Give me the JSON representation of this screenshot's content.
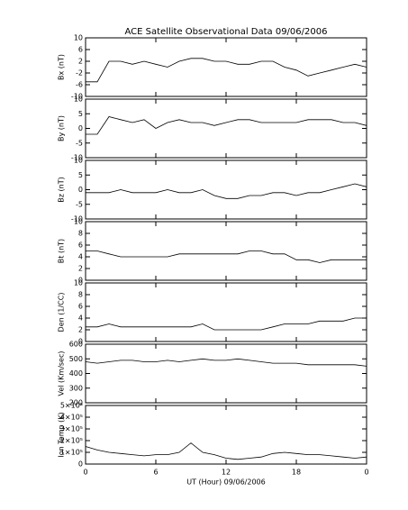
{
  "chart_data": [
    {
      "type": "line",
      "title": "ACE Satellite Observational Data   09/06/2006",
      "ylabel": "Bx (nT)",
      "ylim": [
        -10,
        10
      ],
      "yticks": [
        -10,
        -6,
        -2,
        2,
        6,
        10
      ],
      "color": "#000000",
      "x": [
        0,
        1,
        2,
        3,
        4,
        5,
        6,
        7,
        8,
        9,
        10,
        11,
        12,
        13,
        14,
        15,
        16,
        17,
        18,
        19,
        20,
        21,
        22,
        23,
        24
      ],
      "values": [
        -5,
        -5,
        2,
        2,
        1,
        2,
        1,
        0,
        2,
        3,
        3,
        2,
        2,
        1,
        1,
        2,
        2,
        0,
        -1,
        -3,
        -2,
        -1,
        0,
        1,
        0
      ]
    },
    {
      "type": "line",
      "ylabel": "By (nT)",
      "ylim": [
        -10,
        10
      ],
      "yticks": [
        -10,
        -5,
        0,
        5,
        10
      ],
      "color": "#000000",
      "x": [
        0,
        1,
        2,
        3,
        4,
        5,
        6,
        7,
        8,
        9,
        10,
        11,
        12,
        13,
        14,
        15,
        16,
        17,
        18,
        19,
        20,
        21,
        22,
        23,
        24
      ],
      "values": [
        -2,
        -2,
        4,
        3,
        2,
        3,
        0,
        2,
        3,
        2,
        2,
        1,
        2,
        3,
        3,
        2,
        2,
        2,
        2,
        3,
        3,
        3,
        2,
        2,
        1
      ]
    },
    {
      "type": "line",
      "ylabel": "Bz (nT)",
      "ylim": [
        -10,
        10
      ],
      "yticks": [
        -10,
        -5,
        0,
        5,
        10
      ],
      "color": "#000000",
      "x": [
        0,
        1,
        2,
        3,
        4,
        5,
        6,
        7,
        8,
        9,
        10,
        11,
        12,
        13,
        14,
        15,
        16,
        17,
        18,
        19,
        20,
        21,
        22,
        23,
        24
      ],
      "values": [
        -1,
        -1,
        -1,
        0,
        -1,
        -1,
        -1,
        0,
        -1,
        -1,
        0,
        -2,
        -3,
        -3,
        -2,
        -2,
        -1,
        -1,
        -2,
        -1,
        -1,
        0,
        1,
        2,
        1
      ]
    },
    {
      "type": "line",
      "ylabel": "Bt (nT)",
      "ylim": [
        0,
        10
      ],
      "yticks": [
        0,
        2,
        4,
        6,
        8,
        10
      ],
      "color": "#000000",
      "x": [
        0,
        1,
        2,
        3,
        4,
        5,
        6,
        7,
        8,
        9,
        10,
        11,
        12,
        13,
        14,
        15,
        16,
        17,
        18,
        19,
        20,
        21,
        22,
        23,
        24
      ],
      "values": [
        5,
        5,
        4.5,
        4,
        4,
        4,
        4,
        4,
        4.5,
        4.5,
        4.5,
        4.5,
        4.5,
        4.5,
        5,
        5,
        4.5,
        4.5,
        3.5,
        3.5,
        3,
        3.5,
        3.5,
        3.5,
        3.5
      ]
    },
    {
      "type": "line",
      "ylabel": "Den (1/CC)",
      "ylim": [
        0,
        10
      ],
      "yticks": [
        0,
        2,
        4,
        6,
        8,
        10
      ],
      "color": "#000000",
      "x": [
        0,
        1,
        2,
        3,
        4,
        5,
        6,
        7,
        8,
        9,
        10,
        11,
        12,
        13,
        14,
        15,
        16,
        17,
        18,
        19,
        20,
        21,
        22,
        23,
        24
      ],
      "values": [
        2.5,
        2.5,
        3,
        2.5,
        2.5,
        2.5,
        2.5,
        2.5,
        2.5,
        2.5,
        3,
        2,
        2,
        2,
        2,
        2,
        2.5,
        3,
        3,
        3,
        3.5,
        3.5,
        3.5,
        4,
        4
      ]
    },
    {
      "type": "line",
      "ylabel": "Vel (Km/sec)",
      "ylim": [
        200,
        600
      ],
      "yticks": [
        200,
        300,
        400,
        500,
        600
      ],
      "color": "#000000",
      "x": [
        0,
        1,
        2,
        3,
        4,
        5,
        6,
        7,
        8,
        9,
        10,
        11,
        12,
        13,
        14,
        15,
        16,
        17,
        18,
        19,
        20,
        21,
        22,
        23,
        24
      ],
      "values": [
        480,
        470,
        480,
        490,
        490,
        480,
        480,
        490,
        480,
        490,
        500,
        490,
        490,
        500,
        490,
        480,
        470,
        470,
        470,
        460,
        460,
        460,
        460,
        460,
        450
      ]
    },
    {
      "type": "line",
      "ylabel": "Ion Temp (K)",
      "xlabel": "UT (Hour)   09/06/2006",
      "ylim": [
        0,
        500000
      ],
      "yticks": [
        0,
        {
          "value": 100000,
          "label": "1×10⁵"
        },
        {
          "value": 200000,
          "label": "2×10⁵"
        },
        {
          "value": 300000,
          "label": "3×10⁵"
        },
        {
          "value": 400000,
          "label": "4×10⁵"
        },
        {
          "value": 500000,
          "label": "5×10⁵"
        }
      ],
      "xlim": [
        0,
        24
      ],
      "xticks": [
        0,
        6,
        12,
        18,
        {
          "value": 24,
          "label": "0"
        }
      ],
      "color": "#000000",
      "x": [
        0,
        1,
        2,
        3,
        4,
        5,
        6,
        7,
        8,
        9,
        10,
        11,
        12,
        13,
        14,
        15,
        16,
        17,
        18,
        19,
        20,
        21,
        22,
        23,
        24
      ],
      "values": [
        150000,
        120000,
        100000,
        90000,
        80000,
        70000,
        80000,
        80000,
        100000,
        180000,
        100000,
        80000,
        50000,
        40000,
        50000,
        60000,
        90000,
        100000,
        90000,
        80000,
        80000,
        70000,
        60000,
        50000,
        60000
      ]
    }
  ]
}
